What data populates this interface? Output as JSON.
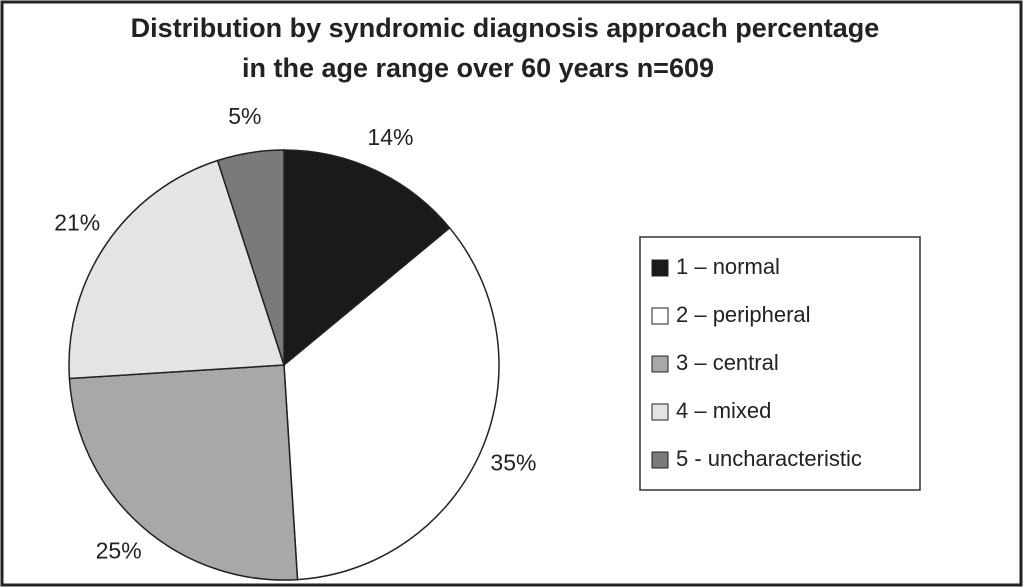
{
  "chart_data": {
    "type": "pie",
    "title": [
      "Distribution by syndromic diagnosis approach percentage",
      "in the age range over 60 years  n=609"
    ],
    "categories": [
      "1 – normal",
      "2 – peripheral",
      "3 – central",
      "4 – mixed",
      "5 - uncharacteristic"
    ],
    "values": [
      14,
      35,
      25,
      21,
      5
    ],
    "value_labels": [
      "14%",
      "35%",
      "25%",
      "21%",
      "5%"
    ],
    "colors": [
      "#1a1a1a",
      "#ffffff",
      "#a8a8a8",
      "#e4e4e4",
      "#7a7a7a"
    ],
    "legend": "right"
  }
}
